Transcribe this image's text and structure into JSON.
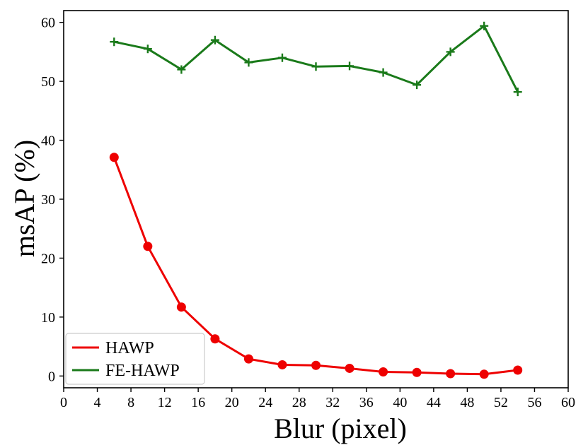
{
  "chart_data": {
    "type": "line",
    "title": "",
    "xlabel": "Blur (pixel)",
    "ylabel": "msAP (%)",
    "xlim": [
      0,
      60
    ],
    "ylim": [
      -2,
      62
    ],
    "xticks": [
      0,
      4,
      8,
      12,
      16,
      20,
      24,
      28,
      32,
      36,
      40,
      44,
      48,
      52,
      56,
      60
    ],
    "yticks": [
      0,
      10,
      20,
      30,
      40,
      50,
      60
    ],
    "grid": false,
    "legend_position": "lower-left",
    "x": [
      6,
      10,
      14,
      18,
      22,
      26,
      30,
      34,
      38,
      42,
      46,
      50,
      54
    ],
    "series": [
      {
        "name": "HAWP",
        "color": "#ee0000",
        "marker": "circle",
        "values": [
          37.1,
          22.0,
          11.7,
          6.3,
          2.9,
          1.9,
          1.8,
          1.3,
          0.7,
          0.6,
          0.4,
          0.3,
          1.0
        ]
      },
      {
        "name": "FE-HAWP",
        "color": "#1a7a1a",
        "marker": "plus",
        "values": [
          56.7,
          55.5,
          52.0,
          57.0,
          53.2,
          54.0,
          52.5,
          52.6,
          51.5,
          49.4,
          55.0,
          59.4,
          48.2
        ]
      }
    ]
  }
}
